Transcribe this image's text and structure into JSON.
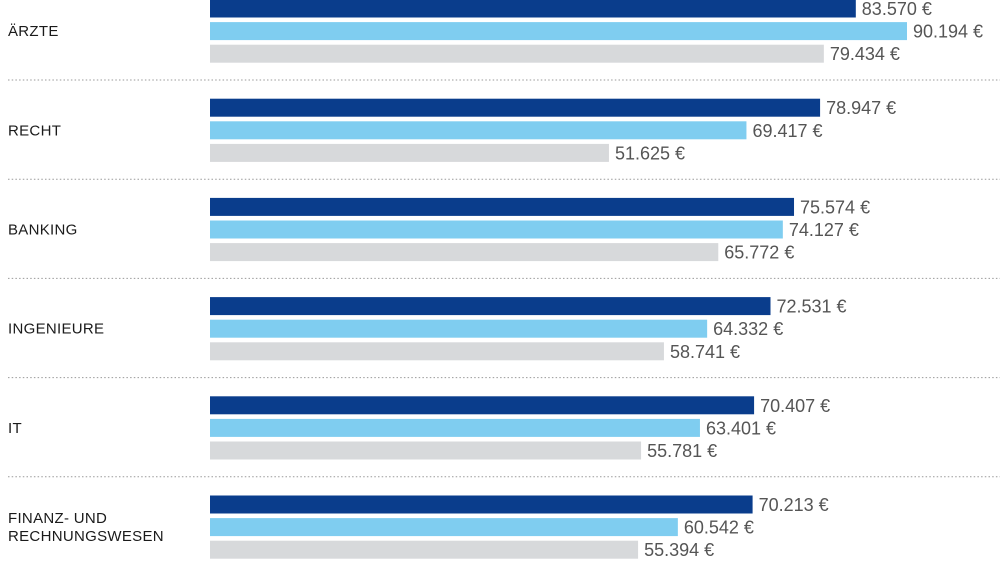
{
  "chart_data": {
    "type": "bar",
    "orientation": "horizontal",
    "categories": [
      [
        "ÄRZTE"
      ],
      [
        "RECHT"
      ],
      [
        "BANKING"
      ],
      [
        "INGENIEURE"
      ],
      [
        "IT"
      ],
      [
        "FINANZ- UND",
        "RECHNUNGSWESEN"
      ]
    ],
    "series": [
      {
        "color": "#0a3d8c",
        "values": [
          83570,
          78947,
          75574,
          72531,
          70407,
          70213
        ],
        "labels": [
          "83.570 €",
          "78.947 €",
          "75.574 €",
          "72.531 €",
          "70.407 €",
          "70.213 €"
        ]
      },
      {
        "color": "#7fcdf0",
        "values": [
          90194,
          69417,
          74127,
          64332,
          63401,
          60542
        ],
        "labels": [
          "90.194 €",
          "69.417 €",
          "74.127 €",
          "64.332 €",
          "63.401 €",
          "60.542 €"
        ]
      },
      {
        "color": "#d7d9db",
        "values": [
          79434,
          51625,
          65772,
          58741,
          55781,
          55394
        ],
        "labels": [
          "79.434 €",
          "51.625 €",
          "65.772 €",
          "58.741 €",
          "55.781 €",
          "55.394 €"
        ]
      }
    ],
    "xlim": [
      0,
      90194
    ],
    "grid": false,
    "separator_color": "#9a9a9a",
    "value_label_color": "#555555"
  }
}
